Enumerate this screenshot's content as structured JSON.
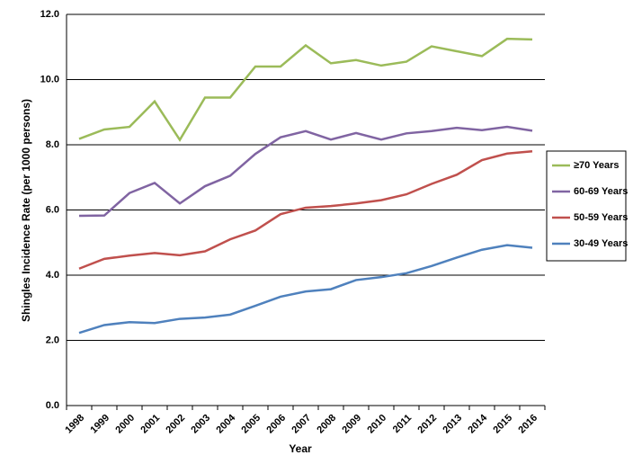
{
  "chart_data": {
    "type": "line",
    "x_label": "Year",
    "y_label": "Shingles Incidence Rate (per 1000 persons)",
    "categories": [
      "1998",
      "1999",
      "2000",
      "2001",
      "2002",
      "2003",
      "2004",
      "2005",
      "2006",
      "2007",
      "2008",
      "2009",
      "2010",
      "2011",
      "2012",
      "2013",
      "2014",
      "2015",
      "2016"
    ],
    "series": [
      {
        "name": "≥70 Years",
        "color": "#9bbb59",
        "values": [
          8.18,
          8.47,
          8.55,
          9.33,
          8.15,
          9.45,
          9.45,
          10.4,
          10.4,
          11.05,
          10.5,
          10.6,
          10.43,
          10.55,
          11.02,
          10.87,
          10.72,
          11.25,
          11.23
        ]
      },
      {
        "name": "60-69 Years",
        "color": "#8064a2",
        "values": [
          5.82,
          5.83,
          6.52,
          6.83,
          6.2,
          6.73,
          7.05,
          7.72,
          8.23,
          8.42,
          8.16,
          8.36,
          8.16,
          8.35,
          8.42,
          8.52,
          8.45,
          8.55,
          8.43
        ]
      },
      {
        "name": "50-59 Years",
        "color": "#c0504d",
        "values": [
          4.2,
          4.5,
          4.6,
          4.68,
          4.61,
          4.73,
          5.1,
          5.37,
          5.87,
          6.07,
          6.12,
          6.2,
          6.3,
          6.48,
          6.8,
          7.08,
          7.53,
          7.73,
          7.8
        ]
      },
      {
        "name": "30-49 Years",
        "color": "#4f81bd",
        "values": [
          2.23,
          2.47,
          2.56,
          2.53,
          2.66,
          2.7,
          2.79,
          3.06,
          3.34,
          3.5,
          3.57,
          3.85,
          3.94,
          4.06,
          4.28,
          4.54,
          4.78,
          4.92,
          4.84
        ]
      }
    ],
    "ylim": [
      0,
      12
    ],
    "yticks": [
      {
        "value": 0,
        "label": "0.0"
      },
      {
        "value": 2,
        "label": "2.0"
      },
      {
        "value": 4,
        "label": "4.0"
      },
      {
        "value": 6,
        "label": "6.0"
      },
      {
        "value": 8,
        "label": "8.0"
      },
      {
        "value": 10,
        "label": "10.0"
      },
      {
        "value": 12,
        "label": "12.0"
      }
    ],
    "grid": true,
    "legend": "right"
  }
}
